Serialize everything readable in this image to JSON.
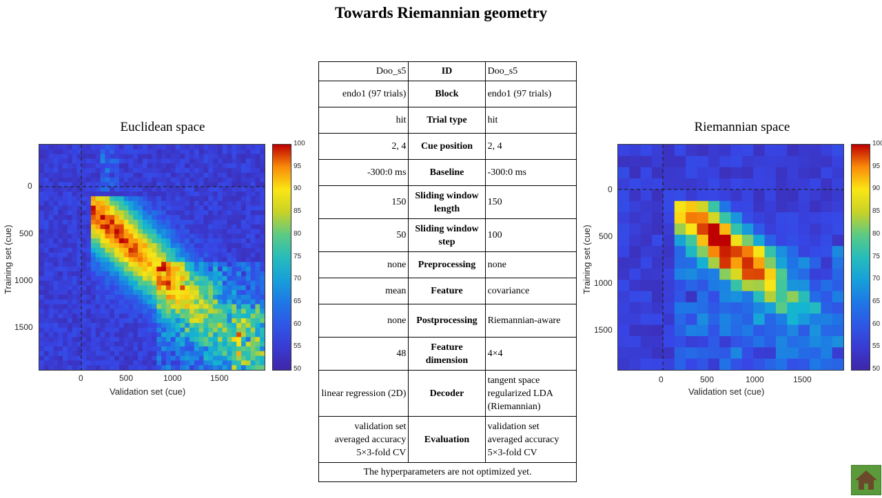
{
  "title": "Towards Riemannian geometry",
  "left_panel": {
    "title": "Euclidean space",
    "xlabel": "Validation set (cue)",
    "ylabel": "Training set (cue)",
    "xticks": [
      "0",
      "500",
      "1000",
      "1500"
    ],
    "yticks": [
      "0",
      "500",
      "1000",
      "1500"
    ],
    "colorbar_ticks": [
      "100",
      "95",
      "90",
      "85",
      "80",
      "75",
      "70",
      "65",
      "60",
      "55",
      "50"
    ]
  },
  "right_panel": {
    "title": "Riemannian space",
    "xlabel": "Validation set (cue)",
    "ylabel": "Training set (cue)",
    "xticks": [
      "0",
      "500",
      "1000",
      "1500"
    ],
    "yticks": [
      "0",
      "500",
      "1000",
      "1500"
    ],
    "colorbar_ticks": [
      "100",
      "95",
      "90",
      "85",
      "80",
      "75",
      "70",
      "65",
      "60",
      "55",
      "50"
    ]
  },
  "table": {
    "rows": [
      {
        "left": "Doo_s5",
        "label": "ID",
        "right": "Doo_s5"
      },
      {
        "left": "endo1 (97 trials)",
        "label": "Block",
        "right": "endo1 (97 trials)"
      },
      {
        "left": "hit",
        "label": "Trial  type",
        "right": "hit"
      },
      {
        "left": "2, 4",
        "label": "Cue position",
        "right": "2, 4"
      },
      {
        "left": "-300:0 ms",
        "label": "Baseline",
        "right": "-300:0 ms"
      },
      {
        "left": "150",
        "label": "Sliding window  length",
        "right": "150"
      },
      {
        "left": "50",
        "label": "Sliding window  step",
        "right": "100"
      },
      {
        "left": "none",
        "label": "Preprocessing",
        "right": "none"
      },
      {
        "left": "mean",
        "label": "Feature",
        "right": "covariance"
      },
      {
        "left": "none",
        "label": "Postprocessing",
        "right": "Riemannian-aware"
      },
      {
        "left": "48",
        "label": "Feature dimension",
        "right": "4×4"
      },
      {
        "left": "linear regression (2D)",
        "label": "Decoder",
        "right": "tangent space regularized LDA (Riemannian)"
      },
      {
        "left": "validation set averaged accuracy 5×3-fold CV",
        "label": "Evaluation",
        "right": "validation set averaged accuracy 5×3-fold CV"
      }
    ],
    "footer": "The hyperparameters  are not optimized  yet."
  },
  "home_icon": "home-icon",
  "colors": {
    "home_bg": "#5a9a3a",
    "heat_low": "#3b2fb5",
    "heat_high": "#c40000"
  }
}
